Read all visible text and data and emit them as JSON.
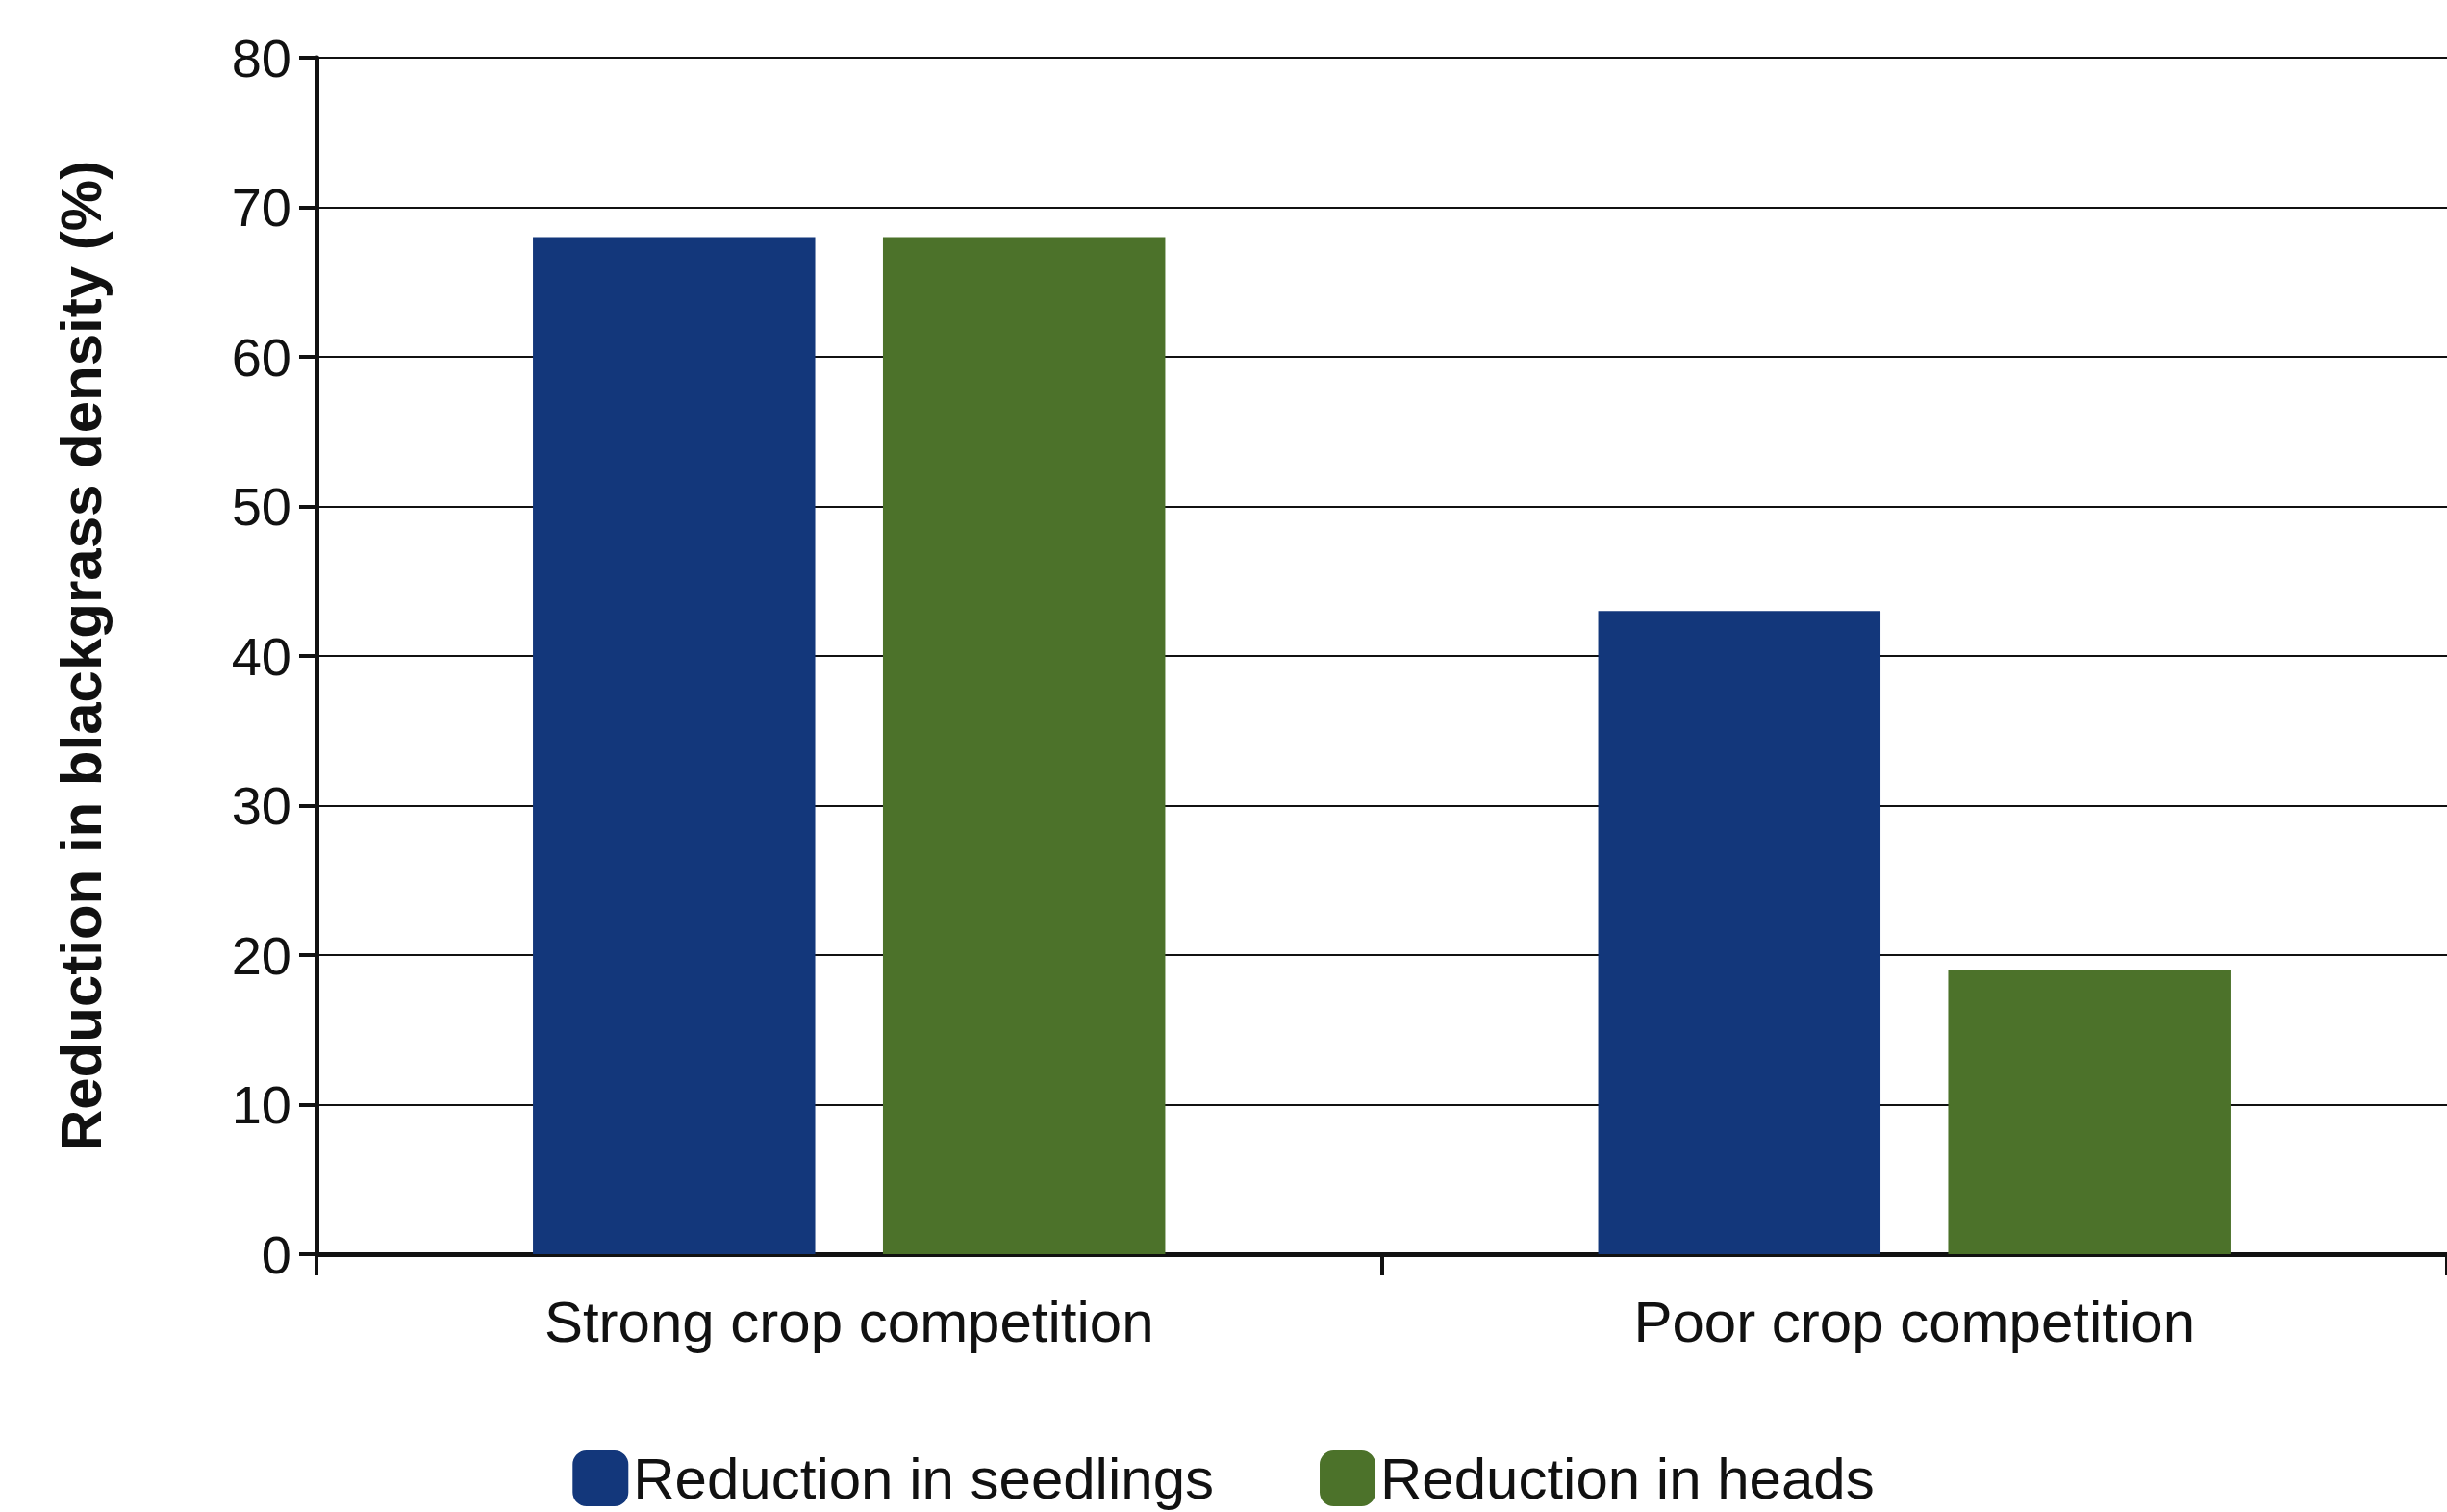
{
  "chart_data": {
    "type": "bar",
    "ylabel": "Reduction in blackgrass density (%)",
    "categories": [
      "Strong crop competition",
      "Poor crop competition"
    ],
    "series": [
      {
        "name": "Reduction in seedlings",
        "color": "#13377b",
        "values": [
          68,
          43
        ]
      },
      {
        "name": "Reduction in heads",
        "color": "#4c722a",
        "values": [
          68,
          19
        ]
      }
    ],
    "ylim": [
      0,
      80
    ],
    "yticks": [
      0,
      10,
      20,
      30,
      40,
      50,
      60,
      70,
      80
    ],
    "grid": "y",
    "legend": "bottom"
  }
}
